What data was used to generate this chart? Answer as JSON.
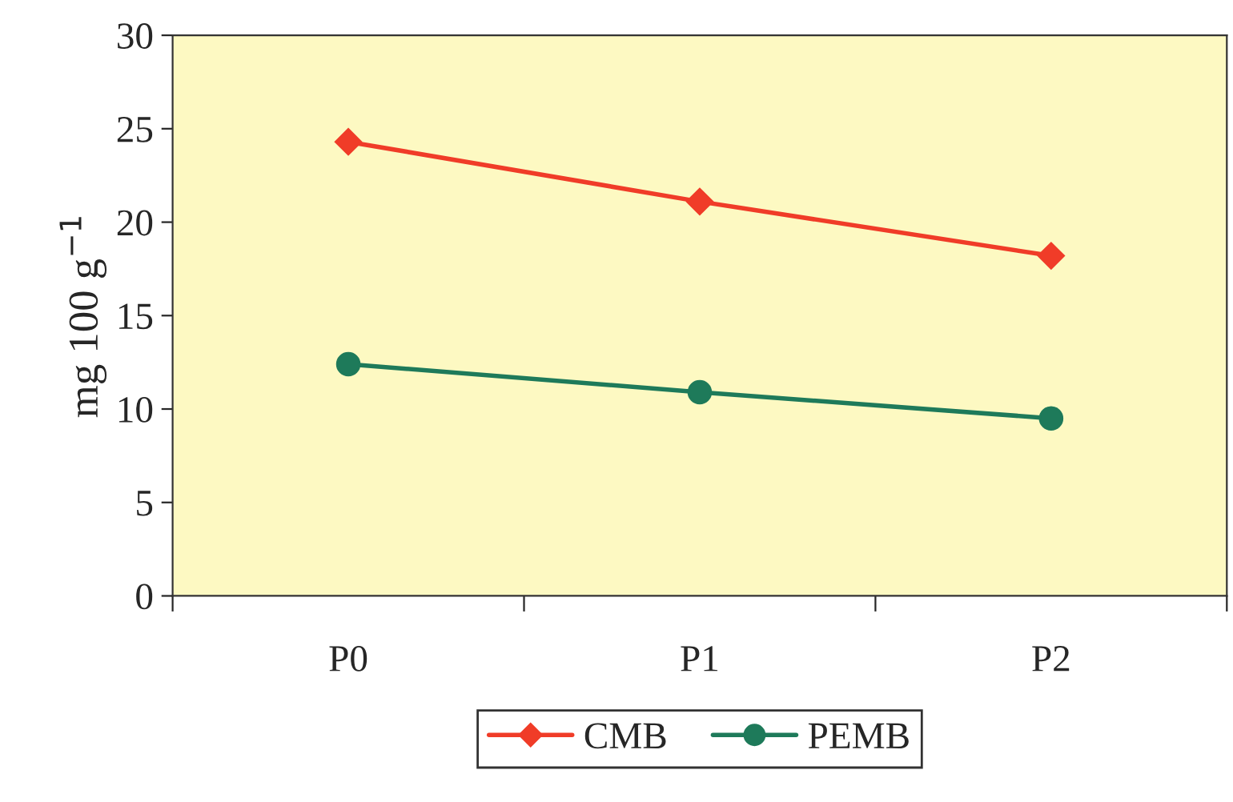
{
  "chart_data": {
    "type": "line",
    "ylabel": "mg 100 g$^{−1}$",
    "categories": [
      "P0",
      "P1",
      "P2"
    ],
    "series": [
      {
        "name": "CMB",
        "color": "#f03c28",
        "values": [
          24.3,
          21.1,
          18.2
        ],
        "marker": "diamond"
      },
      {
        "name": "PEMB",
        "color": "#1e7a5a",
        "values": [
          12.4,
          10.9,
          9.5
        ],
        "marker": "circle"
      }
    ],
    "ylim": [
      0,
      30
    ],
    "yticks": [
      0,
      5,
      10,
      15,
      20,
      25,
      30
    ],
    "grid": false,
    "legend": "bottom",
    "line_style": "solid"
  }
}
